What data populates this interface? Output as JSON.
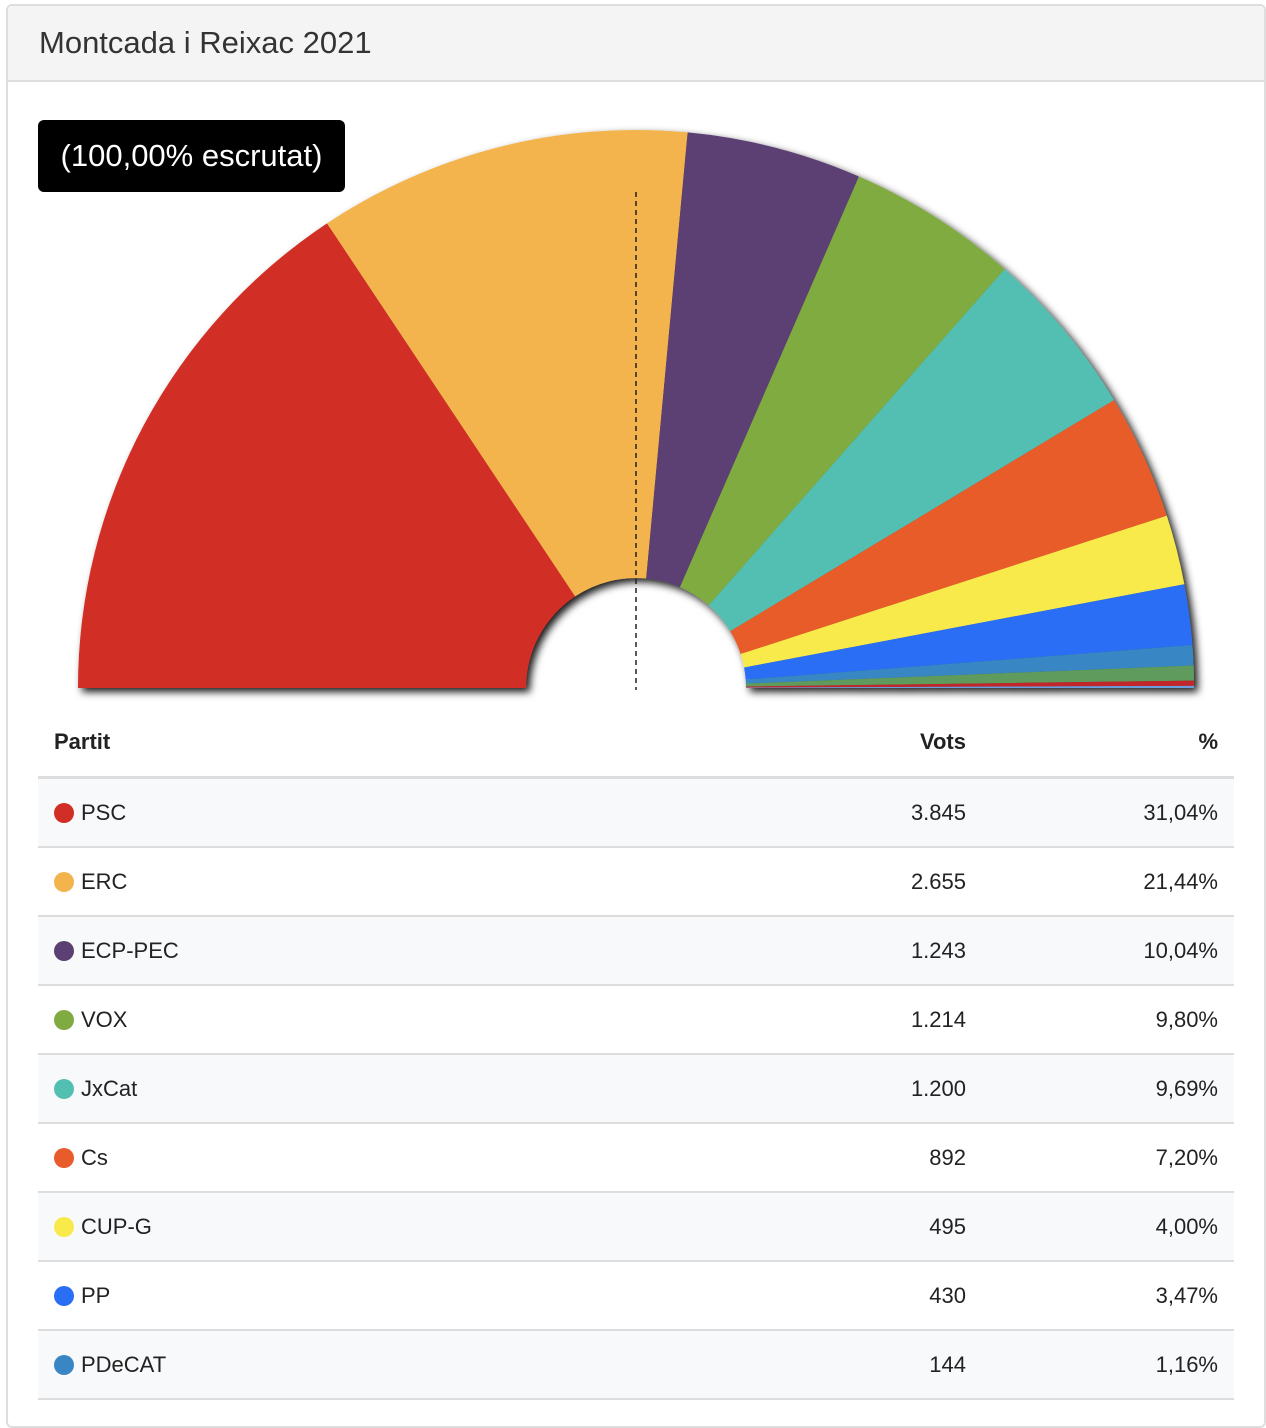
{
  "title": "Montcada i Reixac 2021",
  "badge": "(100,00% escrutat)",
  "table": {
    "headers": [
      "Partit",
      "Vots",
      "%"
    ]
  },
  "chart_data": {
    "type": "pie",
    "shape": "half-donut",
    "title": "Montcada i Reixac 2021",
    "series": [
      {
        "name": "PSC",
        "votes": "3.845",
        "pct_label": "31,04%",
        "value": 31.04,
        "color": "#d12e26"
      },
      {
        "name": "ERC",
        "votes": "2.655",
        "pct_label": "21,44%",
        "value": 21.44,
        "color": "#f3b44e"
      },
      {
        "name": "ECP-PEC",
        "votes": "1.243",
        "pct_label": "10,04%",
        "value": 10.04,
        "color": "#5c3f73"
      },
      {
        "name": "VOX",
        "votes": "1.214",
        "pct_label": "9,80%",
        "value": 9.8,
        "color": "#80ab40"
      },
      {
        "name": "JxCat",
        "votes": "1.200",
        "pct_label": "9,69%",
        "value": 9.69,
        "color": "#53bfb2"
      },
      {
        "name": "Cs",
        "votes": "892",
        "pct_label": "7,20%",
        "value": 7.2,
        "color": "#e85b2b"
      },
      {
        "name": "CUP-G",
        "votes": "495",
        "pct_label": "4,00%",
        "value": 4.0,
        "color": "#f9ea4b"
      },
      {
        "name": "PP",
        "votes": "430",
        "pct_label": "3,47%",
        "value": 3.47,
        "color": "#2a6ef5"
      },
      {
        "name": "PDeCAT",
        "votes": "144",
        "pct_label": "1,16%",
        "value": 1.16,
        "color": "#3886c4"
      }
    ],
    "unlabeled_slices": [
      {
        "value": 0.85,
        "color": "#5e9b5b"
      },
      {
        "value": 0.3,
        "color": "#c0282a"
      },
      {
        "value": 0.12,
        "color": "#6aa0e0"
      }
    ],
    "majority_line": true
  }
}
